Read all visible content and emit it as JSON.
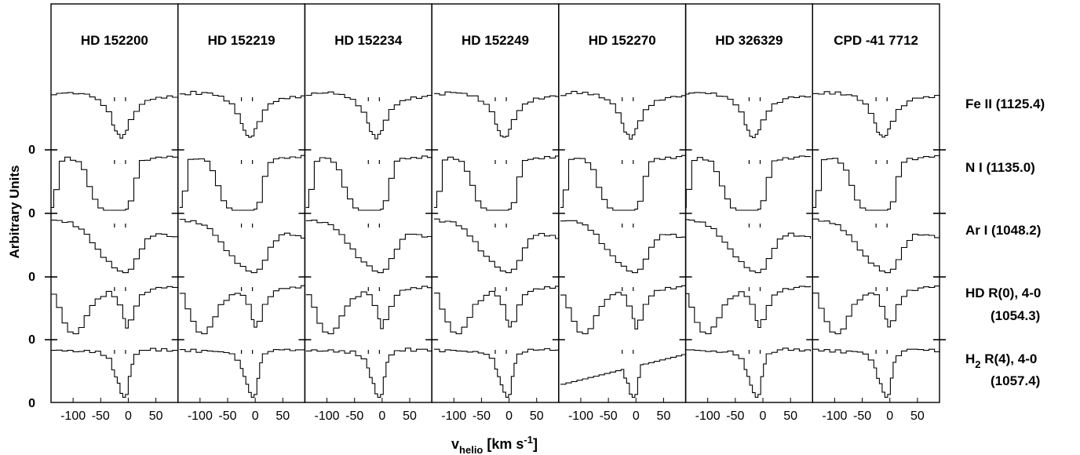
{
  "chart_data": {
    "type": "line",
    "title": "",
    "xlabel": {
      "main": "v",
      "sub": "helio",
      "unit": " [km s",
      "sup": "-1",
      "close": "]"
    },
    "ylabel": "Arbitrary Units",
    "xlim": [
      -140,
      90
    ],
    "xticks": [
      -100,
      -50,
      0,
      50
    ],
    "xtick_labels": [
      "-100",
      "-50",
      "0",
      "50"
    ],
    "zero_label": "0",
    "stars": [
      "HD 152200",
      "HD 152219",
      "HD 152234",
      "HD 152249",
      "HD 152270",
      "HD 326329",
      "CPD -41 7712"
    ],
    "lines": [
      {
        "label_lines": [
          [
            {
              "t": "Fe II (1125.4)"
            }
          ]
        ]
      },
      {
        "label_lines": [
          [
            {
              "t": "N I (1135.0)"
            }
          ]
        ]
      },
      {
        "label_lines": [
          [
            {
              "t": "Ar I (1048.2)"
            }
          ]
        ]
      },
      {
        "label_lines": [
          [
            {
              "t": "HD R(0), 4-0"
            }
          ],
          [
            {
              "t": "(1054.3)"
            }
          ]
        ]
      },
      {
        "label_lines": [
          [
            {
              "t": "H"
            },
            {
              "t": "2",
              "sub": true
            },
            {
              "t": " R(4), 4-0"
            }
          ],
          [
            {
              "t": "(1057.4)"
            }
          ]
        ]
      }
    ],
    "component_markers": [
      -25,
      -5
    ],
    "spectra": [
      [
        [
          -140,
          0.92
        ],
        [
          -130,
          0.93
        ],
        [
          -120,
          0.96
        ],
        [
          -110,
          0.94
        ],
        [
          -100,
          0.95
        ],
        [
          -90,
          0.93
        ],
        [
          -80,
          0.91
        ],
        [
          -70,
          0.88
        ],
        [
          -60,
          0.82
        ],
        [
          -50,
          0.74
        ],
        [
          -40,
          0.6
        ],
        [
          -30,
          0.4
        ],
        [
          -25,
          0.27
        ],
        [
          -20,
          0.2
        ],
        [
          -15,
          0.15
        ],
        [
          -10,
          0.2
        ],
        [
          -5,
          0.3
        ],
        [
          0,
          0.46
        ],
        [
          10,
          0.64
        ],
        [
          20,
          0.74
        ],
        [
          30,
          0.8
        ],
        [
          40,
          0.84
        ],
        [
          50,
          0.86
        ],
        [
          60,
          0.87
        ],
        [
          70,
          0.88
        ],
        [
          80,
          0.89
        ],
        [
          90,
          0.88
        ]
      ],
      [
        [
          -140,
          0.05
        ],
        [
          -135,
          0.35
        ],
        [
          -125,
          0.88
        ],
        [
          -115,
          0.92
        ],
        [
          -105,
          0.9
        ],
        [
          -95,
          0.85
        ],
        [
          -85,
          0.7
        ],
        [
          -75,
          0.42
        ],
        [
          -65,
          0.18
        ],
        [
          -55,
          0.04
        ],
        [
          -45,
          0.0
        ],
        [
          -35,
          0.0
        ],
        [
          -25,
          0.0
        ],
        [
          -15,
          0.0
        ],
        [
          -5,
          0.02
        ],
        [
          0,
          0.15
        ],
        [
          10,
          0.58
        ],
        [
          20,
          0.86
        ],
        [
          30,
          0.9
        ],
        [
          40,
          0.91
        ],
        [
          50,
          0.92
        ],
        [
          60,
          0.93
        ],
        [
          70,
          0.94
        ],
        [
          80,
          0.95
        ],
        [
          90,
          0.94
        ]
      ],
      [
        [
          -140,
          0.95
        ],
        [
          -130,
          0.93
        ],
        [
          -120,
          0.92
        ],
        [
          -110,
          0.9
        ],
        [
          -100,
          0.85
        ],
        [
          -90,
          0.78
        ],
        [
          -80,
          0.68
        ],
        [
          -70,
          0.55
        ],
        [
          -60,
          0.42
        ],
        [
          -50,
          0.3
        ],
        [
          -40,
          0.2
        ],
        [
          -30,
          0.12
        ],
        [
          -20,
          0.05
        ],
        [
          -10,
          0.02
        ],
        [
          0,
          0.08
        ],
        [
          10,
          0.25
        ],
        [
          20,
          0.45
        ],
        [
          30,
          0.6
        ],
        [
          40,
          0.68
        ],
        [
          50,
          0.7
        ],
        [
          60,
          0.68
        ],
        [
          70,
          0.66
        ],
        [
          80,
          0.64
        ],
        [
          90,
          0.62
        ]
      ],
      [
        [
          -140,
          0.75
        ],
        [
          -130,
          0.5
        ],
        [
          -120,
          0.25
        ],
        [
          -110,
          0.08
        ],
        [
          -100,
          0.05
        ],
        [
          -90,
          0.15
        ],
        [
          -80,
          0.35
        ],
        [
          -70,
          0.55
        ],
        [
          -60,
          0.65
        ],
        [
          -50,
          0.72
        ],
        [
          -40,
          0.78
        ],
        [
          -30,
          0.72
        ],
        [
          -20,
          0.55
        ],
        [
          -10,
          0.3
        ],
        [
          -5,
          0.15
        ],
        [
          0,
          0.28
        ],
        [
          10,
          0.55
        ],
        [
          20,
          0.72
        ],
        [
          30,
          0.8
        ],
        [
          40,
          0.83
        ],
        [
          50,
          0.85
        ],
        [
          60,
          0.86
        ],
        [
          70,
          0.87
        ],
        [
          80,
          0.88
        ],
        [
          90,
          0.88
        ]
      ],
      [
        [
          -140,
          0.88
        ],
        [
          -130,
          0.87
        ],
        [
          -120,
          0.88
        ],
        [
          -110,
          0.86
        ],
        [
          -100,
          0.87
        ],
        [
          -90,
          0.85
        ],
        [
          -80,
          0.86
        ],
        [
          -70,
          0.84
        ],
        [
          -60,
          0.85
        ],
        [
          -50,
          0.8
        ],
        [
          -40,
          0.72
        ],
        [
          -30,
          0.55
        ],
        [
          -25,
          0.4
        ],
        [
          -20,
          0.28
        ],
        [
          -15,
          0.12
        ],
        [
          -10,
          0.05
        ],
        [
          -5,
          0.1
        ],
        [
          0,
          0.4
        ],
        [
          5,
          0.65
        ],
        [
          10,
          0.8
        ],
        [
          20,
          0.86
        ],
        [
          30,
          0.88
        ],
        [
          40,
          0.9
        ],
        [
          50,
          0.88
        ],
        [
          60,
          0.89
        ],
        [
          70,
          0.88
        ],
        [
          80,
          0.87
        ],
        [
          90,
          0.88
        ]
      ]
    ],
    "ylim": [
      0,
      1
    ],
    "grid": false,
    "legend": "right"
  }
}
